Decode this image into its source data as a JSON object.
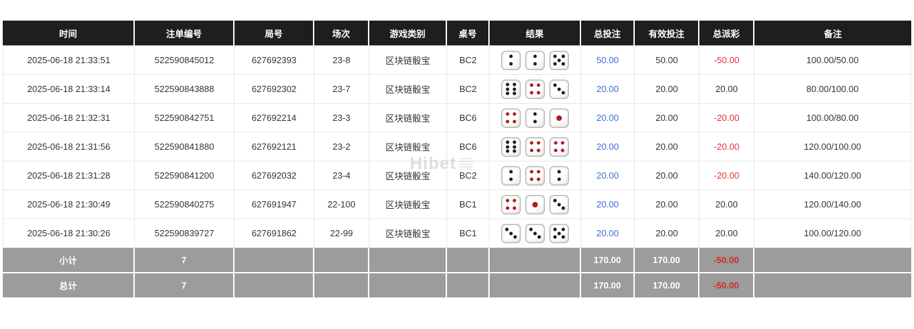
{
  "watermark": "Hibet",
  "colors": {
    "header_bg": "#1e1e1e",
    "header_text": "#ffffff",
    "bet_blue": "#3a70c2",
    "negative_red": "#e03333",
    "summary_bg": "#9c9c9c",
    "summary_negative": "#cf2b2b",
    "pip_black": "#1c1c1c",
    "pip_red": "#b01c1c"
  },
  "dice_red_values": [
    1,
    4
  ],
  "table": {
    "columns": [
      {
        "key": "time",
        "label": "时间"
      },
      {
        "key": "bet_id",
        "label": "注单编号"
      },
      {
        "key": "round",
        "label": "局号"
      },
      {
        "key": "session",
        "label": "场次"
      },
      {
        "key": "game",
        "label": "游戏类别"
      },
      {
        "key": "table_no",
        "label": "桌号"
      },
      {
        "key": "dice",
        "label": "结果"
      },
      {
        "key": "total_bet",
        "label": "总投注"
      },
      {
        "key": "valid_bet",
        "label": "有效投注"
      },
      {
        "key": "payout",
        "label": "总派彩"
      },
      {
        "key": "remark",
        "label": "备注"
      }
    ],
    "rows": [
      {
        "time": "2025-06-18 21:33:51",
        "bet_id": "522590845012",
        "round": "627692393",
        "session": "23-8",
        "game": "区块链骰宝",
        "table_no": "BC2",
        "dice": [
          2,
          2,
          5
        ],
        "total_bet": "50.00",
        "valid_bet": "50.00",
        "payout": "-50.00",
        "remark": "100.00/50.00"
      },
      {
        "time": "2025-06-18 21:33:14",
        "bet_id": "522590843888",
        "round": "627692302",
        "session": "23-7",
        "game": "区块链骰宝",
        "table_no": "BC2",
        "dice": [
          6,
          4,
          3
        ],
        "total_bet": "20.00",
        "valid_bet": "20.00",
        "payout": "20.00",
        "remark": "80.00/100.00"
      },
      {
        "time": "2025-06-18 21:32:31",
        "bet_id": "522590842751",
        "round": "627692214",
        "session": "23-3",
        "game": "区块链骰宝",
        "table_no": "BC6",
        "dice": [
          4,
          2,
          1
        ],
        "total_bet": "20.00",
        "valid_bet": "20.00",
        "payout": "-20.00",
        "remark": "100.00/80.00"
      },
      {
        "time": "2025-06-18 21:31:56",
        "bet_id": "522590841880",
        "round": "627692121",
        "session": "23-2",
        "game": "区块链骰宝",
        "table_no": "BC6",
        "dice": [
          6,
          4,
          4
        ],
        "total_bet": "20.00",
        "valid_bet": "20.00",
        "payout": "-20.00",
        "remark": "120.00/100.00"
      },
      {
        "time": "2025-06-18 21:31:28",
        "bet_id": "522590841200",
        "round": "627692032",
        "session": "23-4",
        "game": "区块链骰宝",
        "table_no": "BC2",
        "dice": [
          2,
          4,
          2
        ],
        "total_bet": "20.00",
        "valid_bet": "20.00",
        "payout": "-20.00",
        "remark": "140.00/120.00"
      },
      {
        "time": "2025-06-18 21:30:49",
        "bet_id": "522590840275",
        "round": "627691947",
        "session": "22-100",
        "game": "区块链骰宝",
        "table_no": "BC1",
        "dice": [
          4,
          1,
          3
        ],
        "total_bet": "20.00",
        "valid_bet": "20.00",
        "payout": "20.00",
        "remark": "120.00/140.00"
      },
      {
        "time": "2025-06-18 21:30:26",
        "bet_id": "522590839727",
        "round": "627691862",
        "session": "22-99",
        "game": "区块链骰宝",
        "table_no": "BC1",
        "dice": [
          3,
          3,
          5
        ],
        "total_bet": "20.00",
        "valid_bet": "20.00",
        "payout": "20.00",
        "remark": "100.00/120.00"
      }
    ],
    "summary_rows": [
      {
        "label": "小计",
        "count": "7",
        "total_bet": "170.00",
        "valid_bet": "170.00",
        "payout": "-50.00",
        "remark": ""
      },
      {
        "label": "总计",
        "count": "7",
        "total_bet": "170.00",
        "valid_bet": "170.00",
        "payout": "-50.00",
        "remark": ""
      }
    ]
  }
}
